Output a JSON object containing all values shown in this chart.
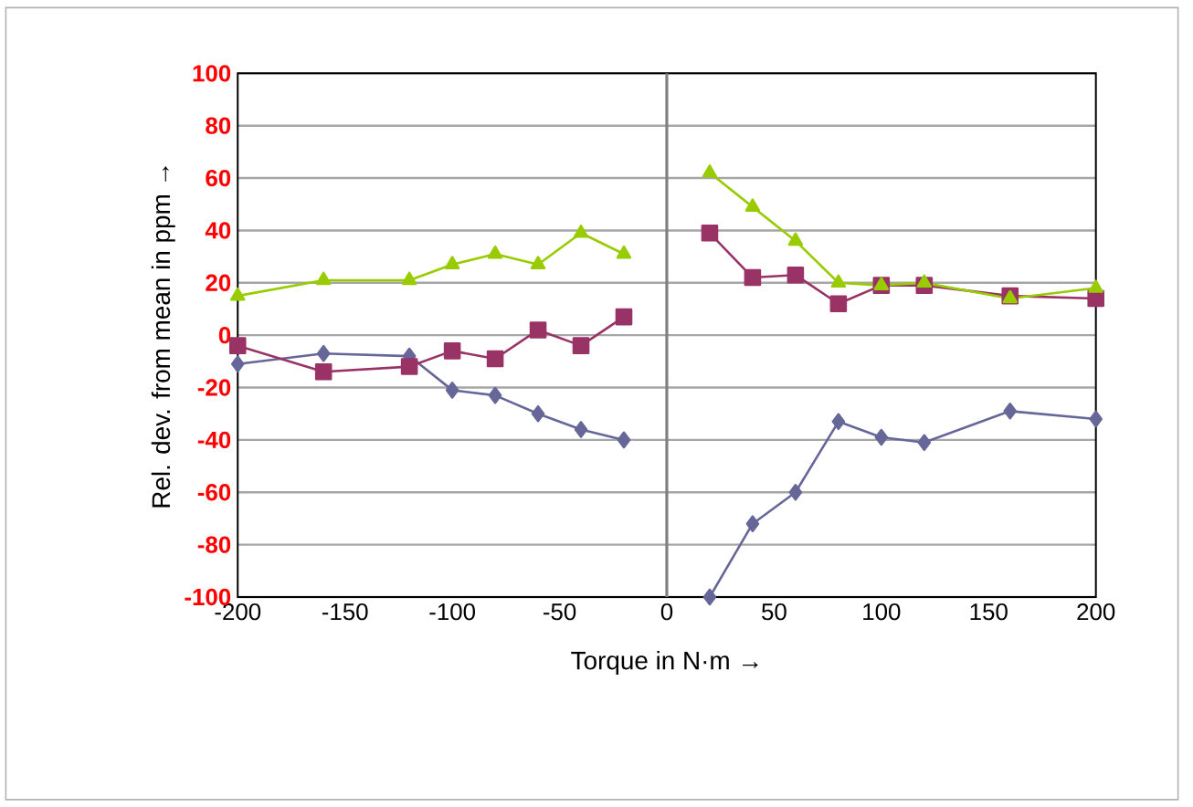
{
  "chart_data": {
    "type": "line",
    "xlabel": "Torque in N·m  →",
    "ylabel": "Rel. dev. from mean in ppm →",
    "x": [
      -200,
      -160,
      -120,
      -100,
      -80,
      -60,
      -40,
      -20,
      0,
      20,
      40,
      60,
      80,
      100,
      120,
      160,
      200
    ],
    "series": [
      {
        "color": "#666699",
        "marker": "diamond",
        "values": [
          -11,
          -7,
          -8,
          -21,
          -23,
          -30,
          -36,
          -40,
          null,
          -100,
          -72,
          -60,
          -33,
          -39,
          -41,
          -29,
          -32
        ]
      },
      {
        "color": "#993366",
        "marker": "square",
        "values": [
          -4,
          -14,
          -12,
          -6,
          -9,
          2,
          -4,
          7,
          null,
          39,
          22,
          23,
          12,
          19,
          19,
          15,
          14
        ]
      },
      {
        "color": "#99cc00",
        "marker": "triangle",
        "values": [
          15,
          21,
          21,
          27,
          31,
          27,
          39,
          31,
          null,
          62,
          49,
          36,
          20,
          19,
          20,
          14,
          18
        ]
      }
    ],
    "xlim": [
      -200,
      200
    ],
    "ylim": [
      -100,
      100
    ],
    "xticks": [
      -200,
      -150,
      -100,
      -50,
      0,
      50,
      100,
      150,
      200
    ],
    "yticks": [
      -100,
      -80,
      -60,
      -40,
      -20,
      0,
      20,
      40,
      60,
      80,
      100
    ],
    "ref_lines": [
      {
        "axis": "x",
        "value": 0,
        "color": "#808080"
      }
    ],
    "grid": "y",
    "line_style": "solid"
  }
}
